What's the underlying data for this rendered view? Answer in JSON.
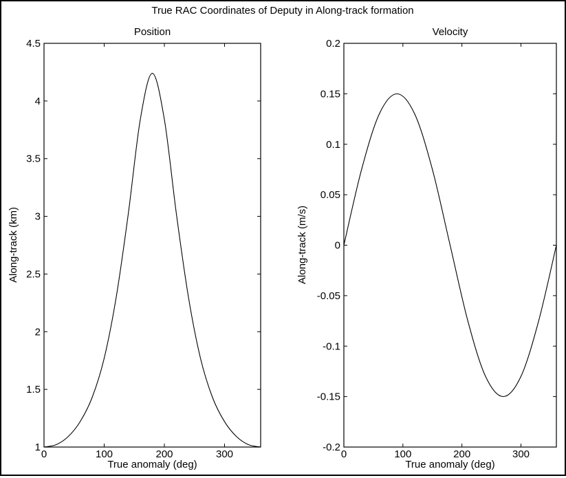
{
  "figure": {
    "title": "True RAC Coordinates of Deputy in Along-track  formation"
  },
  "chart_data": [
    {
      "type": "line",
      "title": "Position",
      "xlabel": "True anomaly (deg)",
      "ylabel": "Along-track (km)",
      "xlim": [
        0,
        360
      ],
      "ylim": [
        1,
        4.5
      ],
      "xticks": [
        0,
        100,
        200,
        300
      ],
      "xtick_labels": [
        "0",
        "100",
        "200",
        "300"
      ],
      "yticks": [
        1,
        1.5,
        2,
        2.5,
        3,
        3.5,
        4,
        4.5
      ],
      "ytick_labels": [
        "1",
        "1.5",
        "2",
        "2.5",
        "3",
        "3.5",
        "4",
        "4.5"
      ],
      "grid": true,
      "series": [
        {
          "color": "#000000",
          "x": [
            0,
            20,
            40,
            60,
            80,
            100,
            120,
            140,
            160,
            180,
            200,
            220,
            240,
            260,
            280,
            300,
            320,
            340,
            360
          ],
          "values": [
            1.0,
            1.02,
            1.09,
            1.22,
            1.43,
            1.77,
            2.3,
            3.02,
            3.84,
            4.24,
            3.84,
            3.02,
            2.3,
            1.77,
            1.43,
            1.22,
            1.09,
            1.02,
            1.0
          ]
        }
      ]
    },
    {
      "type": "line",
      "title": "Velocity",
      "xlabel": "True anomaly (deg)",
      "ylabel": "Along-track (m/s)",
      "xlim": [
        0,
        360
      ],
      "ylim": [
        -0.2,
        0.2
      ],
      "xticks": [
        0,
        100,
        200,
        300
      ],
      "xtick_labels": [
        "0",
        "100",
        "200",
        "300"
      ],
      "yticks": [
        -0.2,
        -0.15,
        -0.1,
        -0.05,
        0,
        0.05,
        0.1,
        0.15,
        0.2
      ],
      "ytick_labels": [
        "-0.2",
        "-0.15",
        "-0.1",
        "-0.05",
        "0",
        "0.05",
        "0.1",
        "0.15",
        "0.2"
      ],
      "grid": true,
      "series": [
        {
          "color": "#000000",
          "x": [
            0,
            30,
            60,
            90,
            120,
            150,
            180,
            210,
            240,
            270,
            300,
            330,
            360
          ],
          "values": [
            0.0,
            0.075,
            0.13,
            0.15,
            0.13,
            0.075,
            0.0,
            -0.075,
            -0.13,
            -0.15,
            -0.13,
            -0.075,
            0.0
          ]
        }
      ]
    }
  ]
}
